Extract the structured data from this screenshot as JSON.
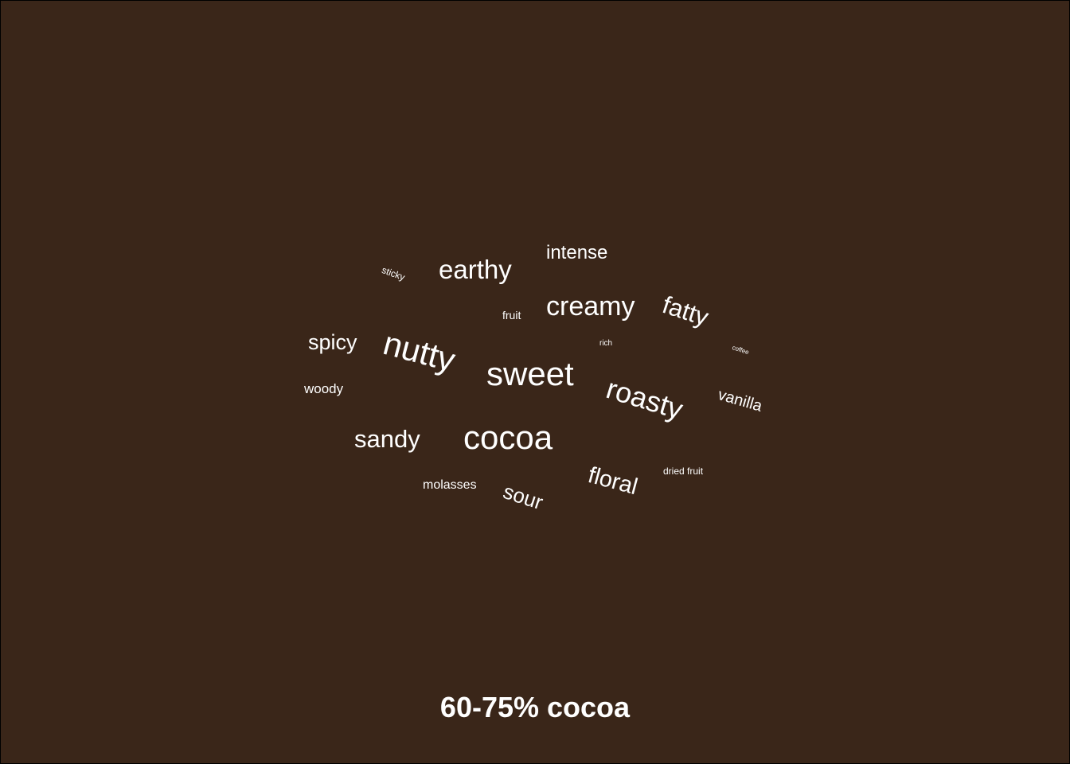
{
  "colors": {
    "background": "#3a2619",
    "text": "#ffffff"
  },
  "caption": "60-75% cocoa",
  "words": [
    {
      "text": "sweet"
    },
    {
      "text": "cocoa"
    },
    {
      "text": "nutty"
    },
    {
      "text": "roasty"
    },
    {
      "text": "creamy"
    },
    {
      "text": "earthy"
    },
    {
      "text": "sandy"
    },
    {
      "text": "fatty"
    },
    {
      "text": "floral"
    },
    {
      "text": "spicy"
    },
    {
      "text": "sour"
    },
    {
      "text": "intense"
    },
    {
      "text": "vanilla"
    },
    {
      "text": "woody"
    },
    {
      "text": "molasses"
    },
    {
      "text": "fruit"
    },
    {
      "text": "dried fruit"
    },
    {
      "text": "sticky"
    },
    {
      "text": "rich"
    },
    {
      "text": "coffee"
    }
  ]
}
